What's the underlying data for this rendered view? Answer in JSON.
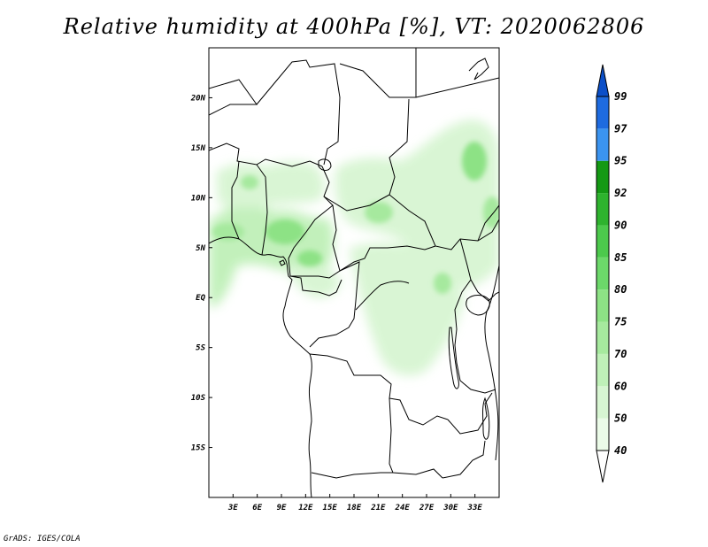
{
  "title": "Relative humidity at 400hPa [%], VT: 2020062806",
  "credit": "GrADS: IGES/COLA",
  "map": {
    "lon_range": [
      0,
      36
    ],
    "lat_range": [
      -20,
      25
    ],
    "lon_ticks": [
      "3E",
      "6E",
      "9E",
      "12E",
      "15E",
      "18E",
      "21E",
      "24E",
      "27E",
      "30E",
      "33E"
    ],
    "lat_ticks": [
      "20N",
      "15N",
      "10N",
      "5N",
      "EQ",
      "5S",
      "10S",
      "15S"
    ]
  },
  "colorbar": {
    "labels": [
      "40",
      "50",
      "60",
      "70",
      "75",
      "80",
      "85",
      "90",
      "92",
      "95",
      "97",
      "99"
    ],
    "colors": [
      "#ffffff",
      "#ebfbe8",
      "#d7f5d2",
      "#bff0b8",
      "#a6e99e",
      "#8de285",
      "#6cd86a",
      "#4cc94c",
      "#2eb32e",
      "#149914",
      "#3b94f0",
      "#1e6be0",
      "#0b4fc8"
    ]
  }
}
